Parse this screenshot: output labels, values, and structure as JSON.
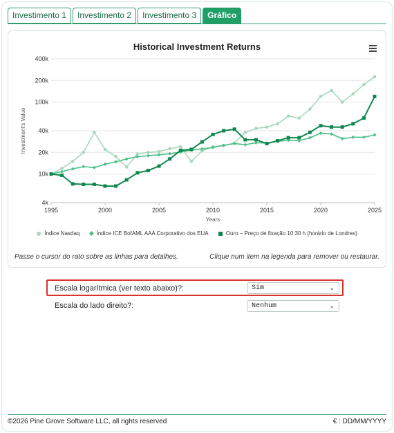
{
  "tabs": [
    {
      "label": "Investimento 1",
      "active": false
    },
    {
      "label": "Investimento 2",
      "active": false
    },
    {
      "label": "Investimento 3",
      "active": false
    },
    {
      "label": "Gráfico",
      "active": true
    }
  ],
  "hints": {
    "left": "Passe o cursor do rato sobre as linhas para detalhes.",
    "right": "Clique num item na legenda para remover ou restaurar."
  },
  "options": {
    "log_scale": {
      "label": "Escala logarítmica (ver texto abaixo)?:",
      "value": "Sim"
    },
    "right_scale": {
      "label": "Escala do lado direito?:",
      "value": "Nenhum"
    }
  },
  "footer": {
    "copyright": "©2026 Pine Grove Software LLC, all rights reserved",
    "format": "€ : DD/MM/YYYY"
  },
  "colors": {
    "accent": "#1f9e66",
    "nasdaq": "#a8d8bc",
    "ice": "#4bbf88",
    "gold": "#10874f",
    "highlight": "#d9312c"
  },
  "icons": [
    "hamburger-menu-icon",
    "chevron-down-icon"
  ],
  "chart_data": {
    "type": "line",
    "title": "Historical Investment Returns",
    "xlabel": "Years",
    "ylabel": "Investment's Value",
    "y_scale": "log",
    "xlim": [
      1995,
      2025
    ],
    "ylim": [
      4000,
      400000
    ],
    "x_ticks": [
      1995,
      2000,
      2005,
      2010,
      2015,
      2020,
      2025
    ],
    "x_tick_labels": [
      "1995",
      "2000",
      "2005",
      "2010",
      "2015",
      "2020",
      "2025"
    ],
    "y_ticks": [
      4000,
      10000,
      20000,
      40000,
      100000,
      200000,
      400000
    ],
    "y_tick_labels": [
      "4k",
      "10k",
      "20k",
      "40k",
      "100k",
      "200k",
      "400k"
    ],
    "grid": true,
    "legend_position": "bottom",
    "x": [
      1995,
      1996,
      1997,
      1998,
      1999,
      2000,
      2001,
      2002,
      2003,
      2004,
      2005,
      2006,
      2007,
      2008,
      2009,
      2010,
      2011,
      2012,
      2013,
      2014,
      2015,
      2016,
      2017,
      2018,
      2019,
      2020,
      2021,
      2022,
      2023,
      2024,
      2025
    ],
    "series": [
      {
        "name": "Índice Nasdaq",
        "marker": "circle",
        "color": "#a8d8bc",
        "values": [
          10000,
          12000,
          15000,
          20000,
          38000,
          22000,
          17500,
          12500,
          19000,
          20000,
          20500,
          22500,
          24000,
          15000,
          21000,
          24000,
          25000,
          27000,
          38000,
          43000,
          45000,
          50000,
          64000,
          60000,
          80000,
          120000,
          145000,
          100000,
          130000,
          175000,
          225000
        ]
      },
      {
        "name": "Índice ICE BofAML AAA Corporativo dos EUA",
        "marker": "diamond",
        "color": "#4bbf88",
        "values": [
          10000,
          10800,
          11800,
          12700,
          12300,
          13700,
          14800,
          16200,
          17400,
          18000,
          18500,
          19200,
          20200,
          21500,
          22300,
          23400,
          25000,
          26500,
          25600,
          27200,
          27000,
          28500,
          29500,
          29000,
          32000,
          37000,
          36000,
          31000,
          32500,
          32500,
          35000
        ]
      },
      {
        "name": "Ouro – Preço de fixação 10:30 h (horário de Londres)",
        "marker": "square",
        "color": "#10874f",
        "values": [
          10000,
          9600,
          7300,
          7200,
          7200,
          6800,
          6800,
          8300,
          10400,
          11200,
          12900,
          16200,
          21300,
          22000,
          28000,
          35500,
          40000,
          42000,
          30000,
          30000,
          26500,
          29000,
          32000,
          32000,
          38000,
          47000,
          45000,
          45000,
          50000,
          60000,
          120000
        ]
      }
    ]
  }
}
